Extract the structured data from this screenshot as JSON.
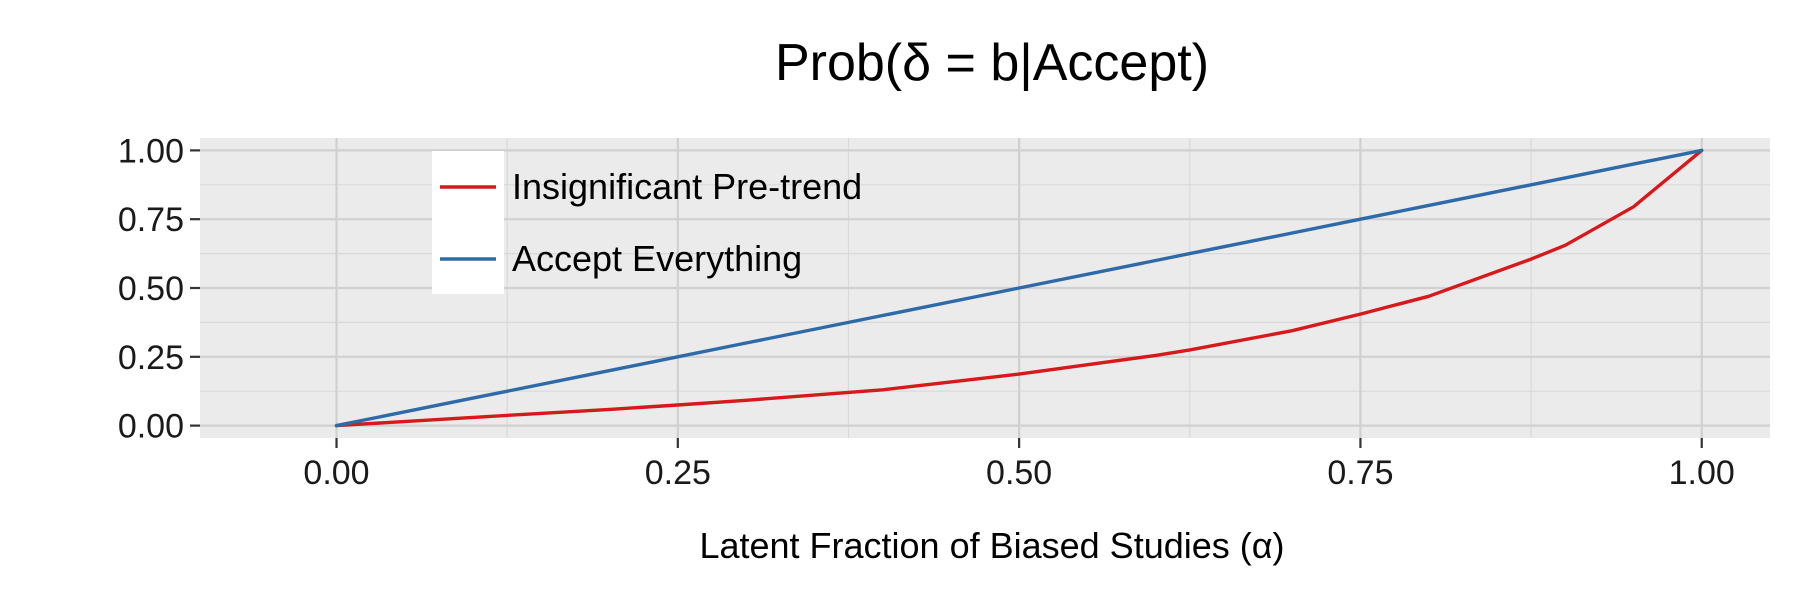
{
  "chart_data": {
    "type": "line",
    "title": "Prob(δ = b|Accept)",
    "xlabel": "Latent Fraction of Biased Studies (α)",
    "ylabel": "",
    "xlim": [
      -0.1,
      1.05
    ],
    "ylim": [
      -0.045,
      1.045
    ],
    "x_ticks": [
      0,
      0.25,
      0.5,
      0.75,
      1
    ],
    "x_tick_labels": [
      "0.00",
      "0.25",
      "0.50",
      "0.75",
      "1.00"
    ],
    "y_ticks": [
      0,
      0.25,
      0.5,
      0.75,
      1
    ],
    "y_tick_labels": [
      "0.00",
      "0.25",
      "0.50",
      "0.75",
      "1.00"
    ],
    "grid": true,
    "legend_position": "top-left",
    "x": [
      0,
      0.1,
      0.2,
      0.25,
      0.3,
      0.4,
      0.5,
      0.6,
      0.625,
      0.7,
      0.75,
      0.8,
      0.875,
      0.9,
      0.95,
      1
    ],
    "series": [
      {
        "name": "Insignificant Pre-trend",
        "color": "#d7191c",
        "values": [
          0,
          0.03,
          0.059,
          0.075,
          0.092,
          0.13,
          0.187,
          0.255,
          0.275,
          0.345,
          0.405,
          0.47,
          0.605,
          0.655,
          0.795,
          1
        ]
      },
      {
        "name": "Accept Everything",
        "color": "#2f6aa8",
        "values": [
          0,
          0.1,
          0.2,
          0.25,
          0.3,
          0.4,
          0.5,
          0.6,
          0.625,
          0.7,
          0.75,
          0.8,
          0.875,
          0.9,
          0.95,
          1
        ]
      }
    ]
  }
}
